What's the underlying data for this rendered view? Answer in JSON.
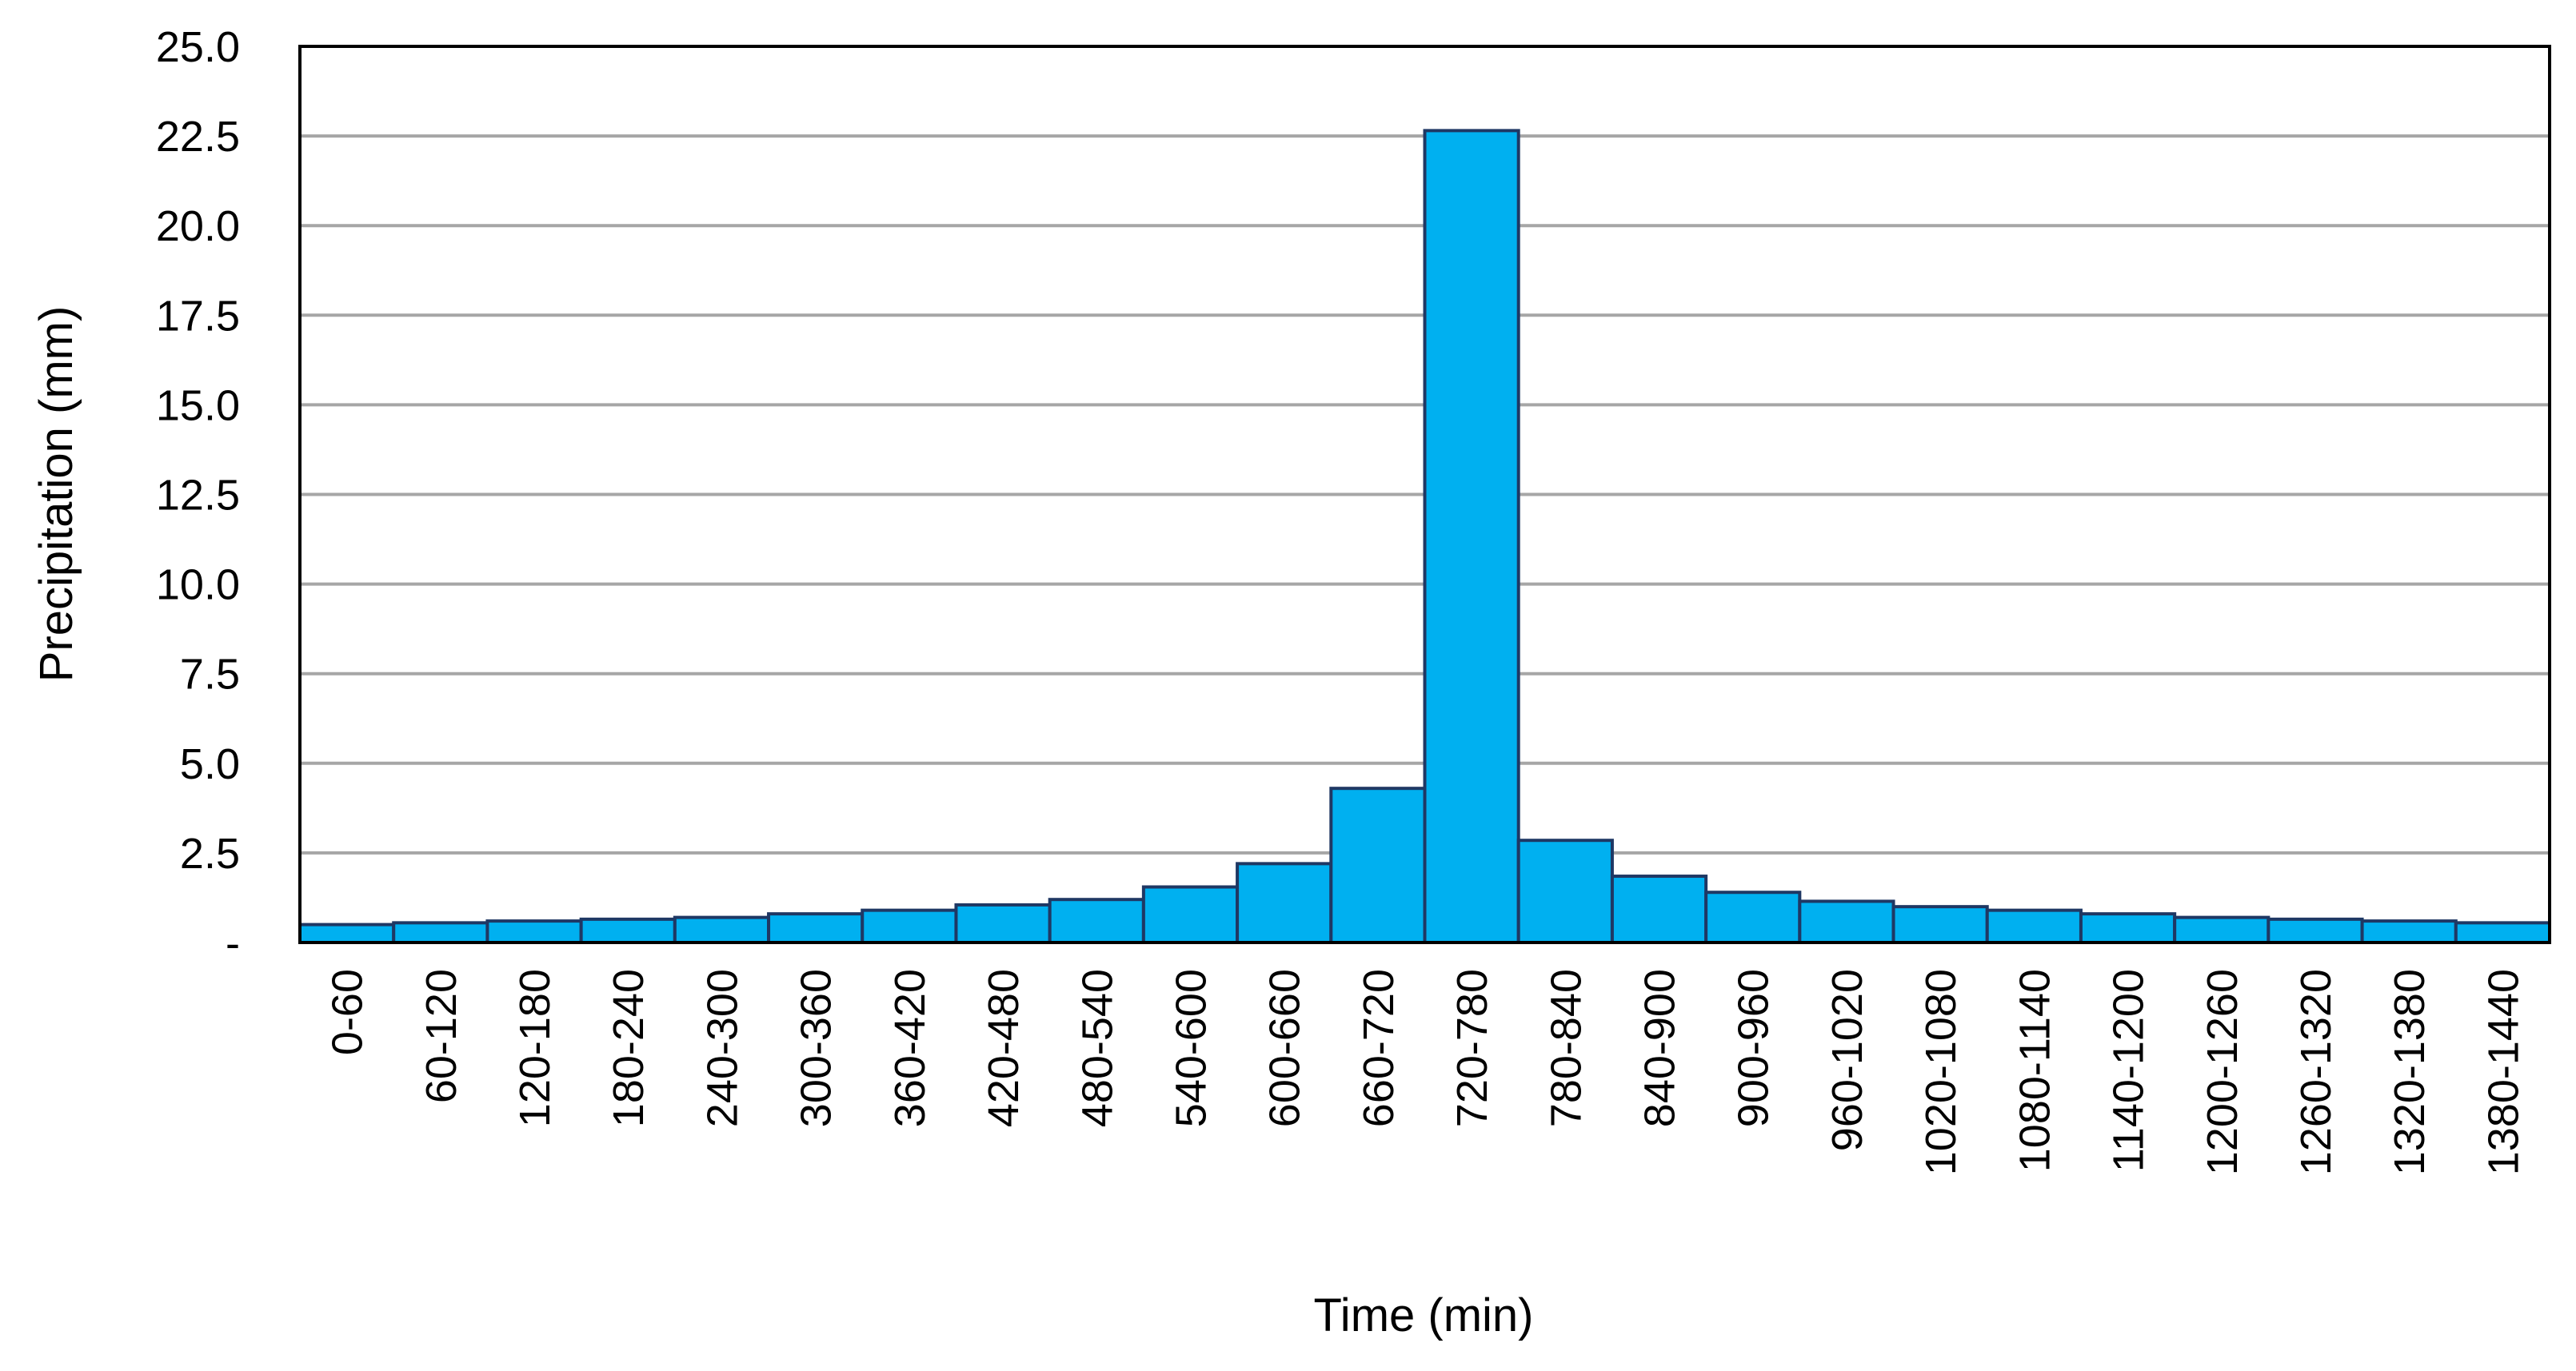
{
  "chart_data": {
    "type": "bar",
    "x_label": "Time (min)",
    "y_label": "Precipitation (mm)",
    "categories": [
      "0-60",
      "60-120",
      "120-180",
      "180-240",
      "240-300",
      "300-360",
      "360-420",
      "420-480",
      "480-540",
      "540-600",
      "600-660",
      "660-720",
      "720-780",
      "780-840",
      "840-900",
      "900-960",
      "960-1020",
      "1020-1080",
      "1080-1140",
      "1140-1200",
      "1200-1260",
      "1260-1320",
      "1320-1380",
      "1380-1440"
    ],
    "values": [
      0.5,
      0.55,
      0.6,
      0.65,
      0.7,
      0.8,
      0.9,
      1.05,
      1.2,
      1.55,
      2.2,
      4.3,
      22.65,
      2.85,
      1.85,
      1.4,
      1.15,
      1.0,
      0.9,
      0.8,
      0.7,
      0.65,
      0.6,
      0.55
    ],
    "color": "#00b0f0",
    "edge_color": "#1f3864",
    "ylim": [
      0,
      25
    ],
    "yticks": [
      {
        "value": 0,
        "label": "-"
      },
      2.5,
      {
        "value": 5,
        "label": "5.0"
      },
      7.5,
      {
        "value": 10,
        "label": "10.0"
      },
      12.5,
      {
        "value": 15,
        "label": "15.0"
      },
      17.5,
      {
        "value": 20,
        "label": "20.0"
      },
      22.5,
      {
        "value": 25,
        "label": "25.0"
      }
    ],
    "grid": true
  }
}
